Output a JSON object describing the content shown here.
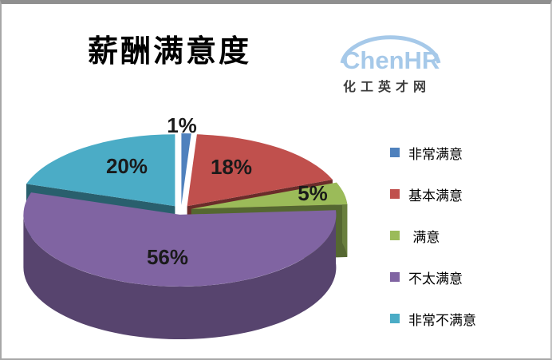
{
  "window": {
    "background": "#ffffff",
    "frame_border_color": "#8f8f8f"
  },
  "branding": {
    "logo_text": "ChenHR",
    "logo_subtitle": "化工英才网",
    "logo_color": "#a6c9e9",
    "logo_subtitle_color": "#3d3d3d"
  },
  "chart_data": {
    "type": "pie",
    "style": "3d-exploded",
    "title": "薪酬满意度",
    "unit": "percent",
    "direction": "clockwise",
    "start_angle_deg": 0,
    "legend_position": "right",
    "grid": false,
    "slices": [
      {
        "label": "非常满意",
        "value": 1,
        "data_label": "1%",
        "color": "#4F81BD"
      },
      {
        "label": "基本满意",
        "value": 18,
        "data_label": "18%",
        "color": "#C0504D"
      },
      {
        "label": " 满意",
        "value": 5,
        "data_label": "5%",
        "color": "#9BBB59"
      },
      {
        "label": "不太满意",
        "value": 56,
        "data_label": "56%",
        "color": "#8064A2"
      },
      {
        "label": "非常不满意",
        "value": 20,
        "data_label": "20%",
        "color": "#4BACC6"
      }
    ],
    "data_label_color": "#1a1a1a"
  }
}
